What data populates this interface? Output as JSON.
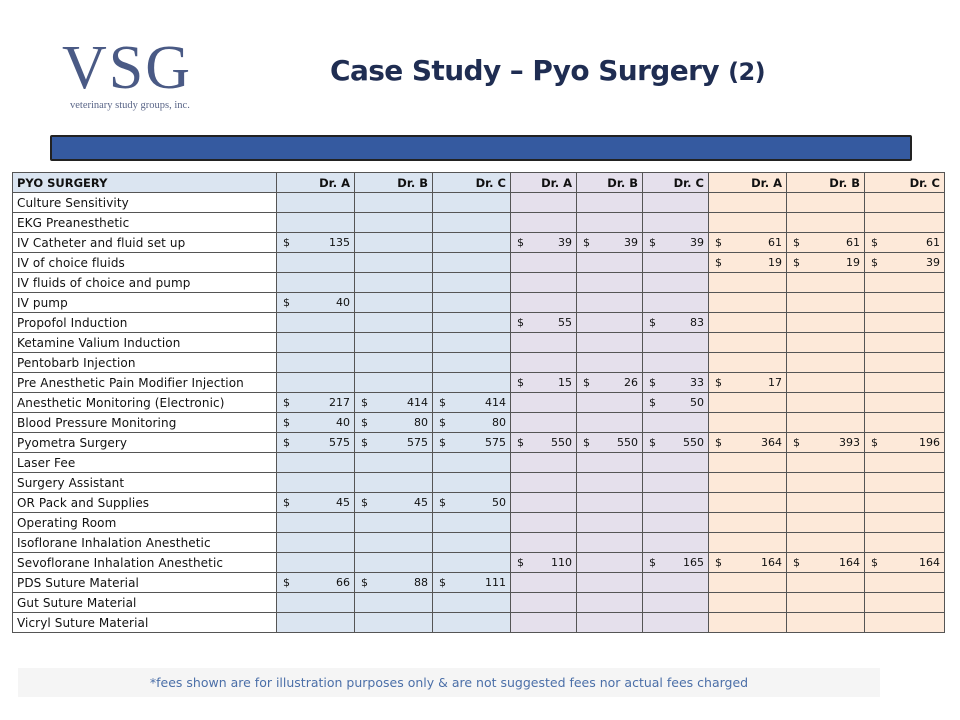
{
  "logo": {
    "main": "VSG",
    "sub": "veterinary study groups, inc."
  },
  "title": {
    "main": "Case Study – Pyo Surgery",
    "suffix": "(2)"
  },
  "table": {
    "headers": [
      "PYO SURGERY",
      "Dr. A",
      "Dr. B",
      "Dr. C",
      "Dr. A",
      "Dr. B",
      "Dr. C",
      "Dr. A",
      "Dr. B",
      "Dr. C"
    ],
    "currency": "$",
    "rows": [
      {
        "label": "Culture Sensitivity",
        "values": [
          "",
          "",
          "",
          "",
          "",
          "",
          "",
          "",
          ""
        ]
      },
      {
        "label": "EKG Preanesthetic",
        "values": [
          "",
          "",
          "",
          "",
          "",
          "",
          "",
          "",
          ""
        ]
      },
      {
        "label": "IV Catheter and fluid set up",
        "values": [
          "135",
          "",
          "",
          "39",
          "39",
          "39",
          "61",
          "61",
          "61"
        ]
      },
      {
        "label": "IV of choice fluids",
        "values": [
          "",
          "",
          "",
          "",
          "",
          "",
          "19",
          "19",
          "39"
        ]
      },
      {
        "label": "IV fluids of choice and pump",
        "values": [
          "",
          "",
          "",
          "",
          "",
          "",
          "",
          "",
          ""
        ]
      },
      {
        "label": "IV pump",
        "values": [
          "40",
          "",
          "",
          "",
          "",
          "",
          "",
          "",
          ""
        ]
      },
      {
        "label": "Propofol Induction",
        "values": [
          "",
          "",
          "",
          "55",
          "",
          "83",
          "",
          "",
          ""
        ]
      },
      {
        "label": "Ketamine Valium Induction",
        "values": [
          "",
          "",
          "",
          "",
          "",
          "",
          "",
          "",
          ""
        ]
      },
      {
        "label": "Pentobarb Injection",
        "values": [
          "",
          "",
          "",
          "",
          "",
          "",
          "",
          "",
          ""
        ]
      },
      {
        "label": "Pre Anesthetic Pain Modifier Injection",
        "values": [
          "",
          "",
          "",
          "15",
          "26",
          "33",
          "17",
          "",
          ""
        ]
      },
      {
        "label": "Anesthetic Monitoring (Electronic)",
        "values": [
          "217",
          "414",
          "414",
          "",
          "",
          "50",
          "",
          "",
          ""
        ]
      },
      {
        "label": "Blood Pressure Monitoring",
        "values": [
          "40",
          "80",
          "80",
          "",
          "",
          "",
          "",
          "",
          ""
        ]
      },
      {
        "label": "Pyometra Surgery",
        "values": [
          "575",
          "575",
          "575",
          "550",
          "550",
          "550",
          "364",
          "393",
          "196"
        ]
      },
      {
        "label": "Laser Fee",
        "values": [
          "",
          "",
          "",
          "",
          "",
          "",
          "",
          "",
          ""
        ]
      },
      {
        "label": "Surgery Assistant",
        "values": [
          "",
          "",
          "",
          "",
          "",
          "",
          "",
          "",
          ""
        ]
      },
      {
        "label": "OR Pack and Supplies",
        "values": [
          "45",
          "45",
          "50",
          "",
          "",
          "",
          "",
          "",
          ""
        ]
      },
      {
        "label": "Operating Room",
        "values": [
          "",
          "",
          "",
          "",
          "",
          "",
          "",
          "",
          ""
        ]
      },
      {
        "label": "Isoflorane Inhalation Anesthetic",
        "values": [
          "",
          "",
          "",
          "",
          "",
          "",
          "",
          "",
          ""
        ]
      },
      {
        "label": "Sevoflorane Inhalation Anesthetic",
        "values": [
          "",
          "",
          "",
          "110",
          "",
          "165",
          "164",
          "164",
          "164"
        ]
      },
      {
        "label": "PDS Suture Material",
        "values": [
          "66",
          "88",
          "111",
          "",
          "",
          "",
          "",
          "",
          ""
        ]
      },
      {
        "label": "Gut Suture Material",
        "values": [
          "",
          "",
          "",
          "",
          "",
          "",
          "",
          "",
          ""
        ]
      },
      {
        "label": "Vicryl Suture Material",
        "values": [
          "",
          "",
          "",
          "",
          "",
          "",
          "",
          "",
          ""
        ]
      }
    ]
  },
  "colors": {
    "group1": "#dbe5f1",
    "group2": "#e5e0ec",
    "group3": "#fde9d9",
    "bar": "#355aa0",
    "title": "#1f2d52"
  },
  "footer": "*fees shown are for illustration purposes only & are not suggested fees nor actual fees charged"
}
